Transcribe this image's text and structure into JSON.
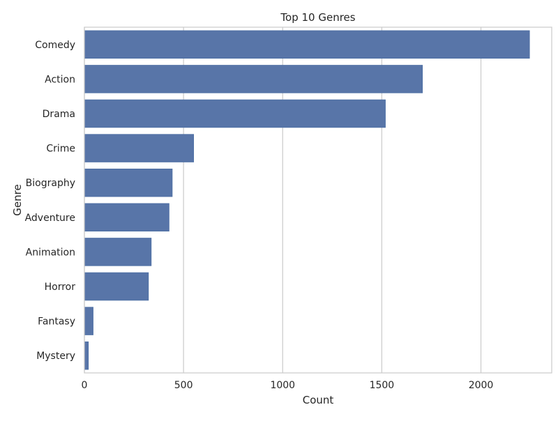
{
  "chart_data": {
    "type": "bar",
    "orientation": "horizontal",
    "title": "Top 10 Genres",
    "xlabel": "Count",
    "ylabel": "Genre",
    "categories": [
      "Comedy",
      "Action",
      "Drama",
      "Crime",
      "Biography",
      "Adventure",
      "Animation",
      "Horror",
      "Fantasy",
      "Mystery"
    ],
    "values": [
      2245,
      1705,
      1518,
      551,
      443,
      427,
      337,
      323,
      44,
      20
    ],
    "xlim": [
      0,
      2357
    ],
    "xticks": [
      0,
      500,
      1000,
      1500,
      2000
    ],
    "grid": true,
    "bar_color": "#5875a8",
    "grid_color": "#cccccc"
  }
}
